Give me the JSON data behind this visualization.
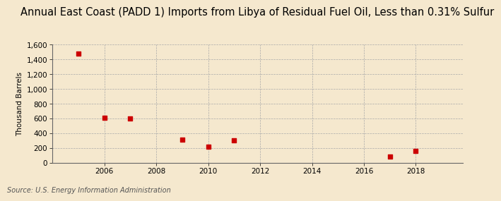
{
  "title": "Annual East Coast (PADD 1) Imports from Libya of Residual Fuel Oil, Less than 0.31% Sulfur",
  "ylabel": "Thousand Barrels",
  "source": "Source: U.S. Energy Information Administration",
  "background_color": "#f5e8ce",
  "data_points": [
    {
      "year": 2005,
      "value": 1480
    },
    {
      "year": 2006,
      "value": 615
    },
    {
      "year": 2007,
      "value": 600
    },
    {
      "year": 2009,
      "value": 310
    },
    {
      "year": 2010,
      "value": 220
    },
    {
      "year": 2011,
      "value": 305
    },
    {
      "year": 2017,
      "value": 90
    },
    {
      "year": 2018,
      "value": 160
    }
  ],
  "marker_color": "#cc0000",
  "marker_style": "s",
  "marker_size": 4,
  "xlim": [
    2004.0,
    2019.8
  ],
  "ylim": [
    0,
    1600
  ],
  "yticks": [
    0,
    200,
    400,
    600,
    800,
    1000,
    1200,
    1400,
    1600
  ],
  "xticks": [
    2006,
    2008,
    2010,
    2012,
    2014,
    2016,
    2018
  ],
  "grid_color": "#aaaaaa",
  "grid_style": "--",
  "title_fontsize": 10.5,
  "axis_fontsize": 7.5,
  "label_fontsize": 7.5,
  "source_fontsize": 7
}
